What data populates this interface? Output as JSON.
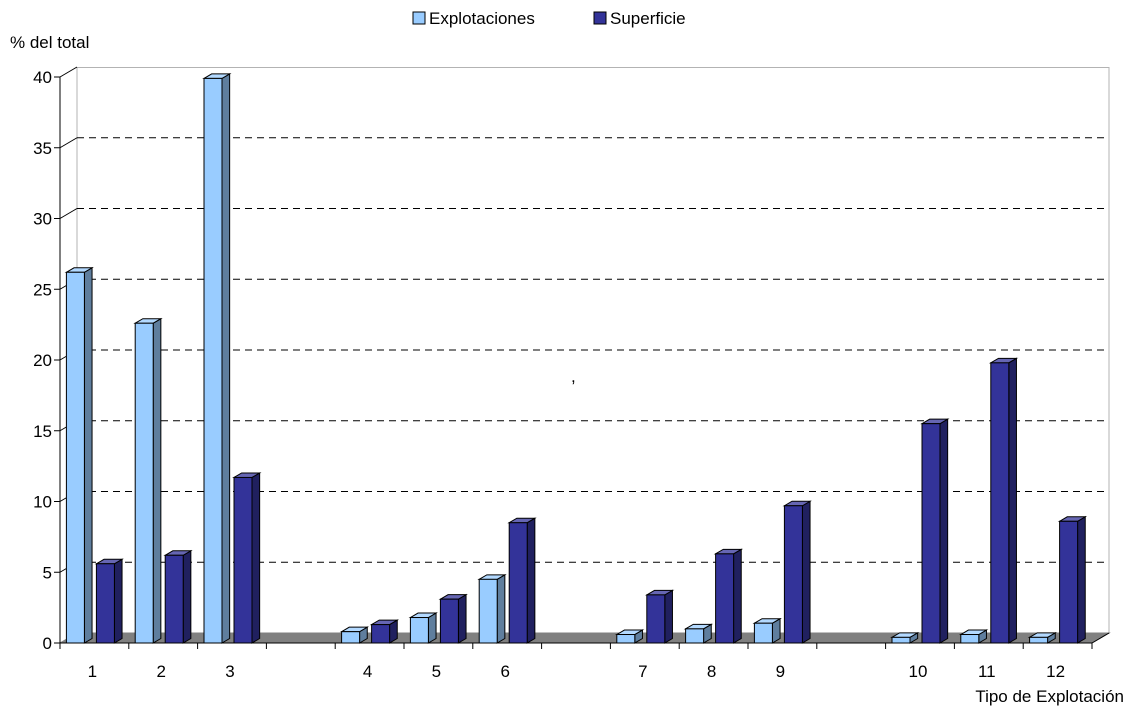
{
  "chart_data": {
    "type": "bar",
    "ylabel": "% del total",
    "xlabel": "Tipo de Explotación",
    "ylim": [
      0,
      40
    ],
    "yticks": [
      0,
      5,
      10,
      15,
      20,
      25,
      30,
      35,
      40
    ],
    "grid": true,
    "legend_position": "top-center",
    "categories": [
      "1",
      "2",
      "3",
      "4",
      "5",
      "6",
      "7",
      "8",
      "9",
      "10",
      "11",
      "12"
    ],
    "series": [
      {
        "name": "Explotaciones",
        "color": "#99ccff",
        "values": [
          26.2,
          22.6,
          39.9,
          0.8,
          1.8,
          4.5,
          0.6,
          1.0,
          1.4,
          0.4,
          0.6,
          0.4
        ]
      },
      {
        "name": "Superficie",
        "color": "#333399",
        "values": [
          5.6,
          6.2,
          11.7,
          1.3,
          3.1,
          8.5,
          3.4,
          6.3,
          9.7,
          15.5,
          19.8,
          8.6
        ]
      }
    ],
    "annotation": ","
  }
}
